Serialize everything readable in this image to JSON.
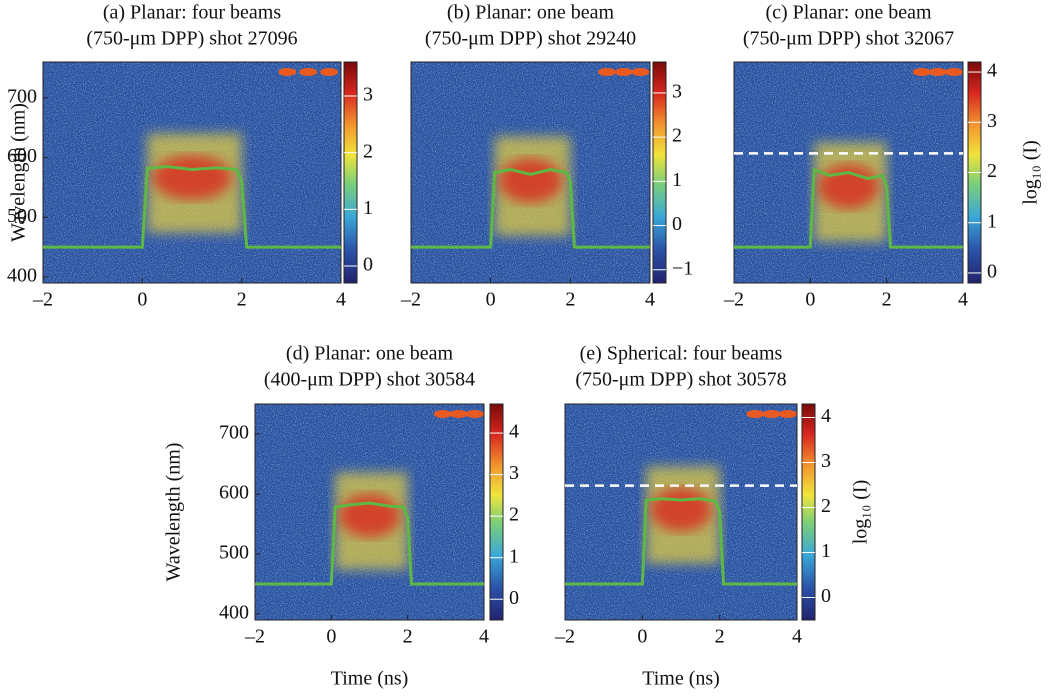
{
  "chart_data": [
    {
      "type": "heatmap",
      "title": [
        "(a) Planar: four beams",
        "(750-μm DPP) shot 27096"
      ],
      "ylabel": "Wavelength (nm)",
      "xlim": [
        -2,
        4
      ],
      "xticks": [
        {
          "value": -2,
          "label": "–2"
        },
        0,
        2,
        4
      ],
      "ylim": [
        390,
        760
      ],
      "yticks": [
        400,
        500,
        600,
        700
      ],
      "clim": [
        -0.3,
        3.6
      ],
      "cticks": [
        0,
        1,
        2,
        3
      ],
      "series": [
        {
          "color": "#5db844",
          "x": [
            -2,
            0,
            0.1,
            0.5,
            1,
            1.5,
            1.9,
            2,
            2.1,
            4
          ],
          "values": [
            450,
            450,
            582,
            585,
            580,
            583,
            580,
            560,
            450,
            450
          ]
        }
      ]
    },
    {
      "type": "heatmap",
      "title": [
        "(b) Planar: one beam",
        "(750-μm DPP) shot 29240"
      ],
      "xlim": [
        -2,
        4
      ],
      "xticks": [
        {
          "value": -2,
          "label": "–2"
        },
        0,
        2,
        4
      ],
      "ylim": [
        390,
        760
      ],
      "yticks": [],
      "clim": [
        -1.3,
        3.7
      ],
      "cticks": [
        {
          "value": -1,
          "label": "−1"
        },
        0,
        1,
        2,
        3
      ],
      "series": [
        {
          "color": "#5db844",
          "x": [
            -2,
            0,
            0.1,
            0.5,
            1,
            1.5,
            1.9,
            2,
            2.1,
            4
          ],
          "values": [
            450,
            450,
            575,
            580,
            572,
            580,
            575,
            560,
            450,
            450
          ]
        }
      ]
    },
    {
      "type": "heatmap",
      "title": [
        "(c) Planar: one beam",
        "(750-μm DPP) shot 32067"
      ],
      "colorbar_label": "log₁₀ (I)",
      "xlim": [
        -2,
        4
      ],
      "xticks": [
        {
          "value": -2,
          "label": "–2"
        },
        0,
        2,
        4
      ],
      "ylim": [
        390,
        760
      ],
      "yticks": [],
      "clim": [
        -0.2,
        4.2
      ],
      "cticks": [
        0,
        1,
        2,
        3,
        4
      ],
      "hline": {
        "value": 607,
        "color": "#ffffff"
      },
      "series": [
        {
          "color": "#5db844",
          "x": [
            -2,
            0,
            0.1,
            0.5,
            1,
            1.5,
            1.9,
            2,
            2.1,
            4
          ],
          "values": [
            450,
            450,
            580,
            570,
            575,
            565,
            570,
            550,
            450,
            450
          ]
        }
      ]
    },
    {
      "type": "heatmap",
      "title": [
        "(d) Planar: one beam",
        "(400-μm DPP) shot 30584"
      ],
      "ylabel": "Wavelength (nm)",
      "xlabel": "Time (ns)",
      "xlim": [
        -2,
        4
      ],
      "xticks": [
        {
          "value": -2,
          "label": "–2"
        },
        0,
        2,
        4
      ],
      "ylim": [
        390,
        750
      ],
      "yticks": [
        400,
        500,
        600,
        700
      ],
      "clim": [
        -0.5,
        4.7
      ],
      "cticks": [
        0,
        1,
        2,
        3,
        4
      ],
      "series": [
        {
          "color": "#5db844",
          "x": [
            -2,
            0,
            0.1,
            0.5,
            1,
            1.5,
            1.9,
            2,
            2.1,
            4
          ],
          "values": [
            450,
            450,
            578,
            582,
            585,
            580,
            578,
            560,
            450,
            450
          ]
        }
      ]
    },
    {
      "type": "heatmap",
      "title": [
        "(e) Spherical: four beams",
        "(750-μm DPP) shot 30578"
      ],
      "xlabel": "Time (ns)",
      "colorbar_label": "log₁₀ (I)",
      "xlim": [
        -2,
        4
      ],
      "xticks": [
        {
          "value": -2,
          "label": "–2"
        },
        0,
        2,
        4
      ],
      "ylim": [
        390,
        750
      ],
      "yticks": [],
      "clim": [
        -0.5,
        4.3
      ],
      "cticks": [
        0,
        1,
        2,
        3,
        4
      ],
      "hline": {
        "value": 614,
        "color": "#ffffff"
      },
      "series": [
        {
          "color": "#5db844",
          "x": [
            -2,
            0,
            0.1,
            0.5,
            1,
            1.5,
            1.9,
            2,
            2.1,
            4
          ],
          "values": [
            450,
            450,
            590,
            592,
            590,
            592,
            588,
            570,
            450,
            450
          ]
        }
      ]
    }
  ]
}
